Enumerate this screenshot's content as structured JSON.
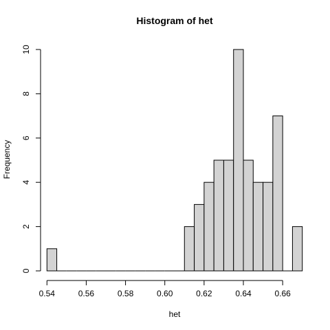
{
  "chart_data": {
    "type": "bar",
    "title": "Histogram of het",
    "xlabel": "het",
    "ylabel": "Frequency",
    "bins": [
      {
        "start": 0.54,
        "end": 0.545,
        "count": 1
      },
      {
        "start": 0.545,
        "end": 0.55,
        "count": 0
      },
      {
        "start": 0.55,
        "end": 0.555,
        "count": 0
      },
      {
        "start": 0.555,
        "end": 0.56,
        "count": 0
      },
      {
        "start": 0.56,
        "end": 0.565,
        "count": 0
      },
      {
        "start": 0.565,
        "end": 0.57,
        "count": 0
      },
      {
        "start": 0.57,
        "end": 0.575,
        "count": 0
      },
      {
        "start": 0.575,
        "end": 0.58,
        "count": 0
      },
      {
        "start": 0.58,
        "end": 0.585,
        "count": 0
      },
      {
        "start": 0.585,
        "end": 0.59,
        "count": 0
      },
      {
        "start": 0.59,
        "end": 0.595,
        "count": 0
      },
      {
        "start": 0.595,
        "end": 0.6,
        "count": 0
      },
      {
        "start": 0.6,
        "end": 0.605,
        "count": 0
      },
      {
        "start": 0.605,
        "end": 0.61,
        "count": 0
      },
      {
        "start": 0.61,
        "end": 0.615,
        "count": 2
      },
      {
        "start": 0.615,
        "end": 0.62,
        "count": 3
      },
      {
        "start": 0.62,
        "end": 0.625,
        "count": 4
      },
      {
        "start": 0.625,
        "end": 0.63,
        "count": 5
      },
      {
        "start": 0.63,
        "end": 0.635,
        "count": 5
      },
      {
        "start": 0.635,
        "end": 0.64,
        "count": 10
      },
      {
        "start": 0.64,
        "end": 0.645,
        "count": 5
      },
      {
        "start": 0.645,
        "end": 0.65,
        "count": 4
      },
      {
        "start": 0.65,
        "end": 0.655,
        "count": 4
      },
      {
        "start": 0.655,
        "end": 0.66,
        "count": 7
      },
      {
        "start": 0.66,
        "end": 0.665,
        "count": 0
      },
      {
        "start": 0.665,
        "end": 0.67,
        "count": 2
      }
    ],
    "x_ticks": [
      {
        "value": 0.54,
        "label": "0.54"
      },
      {
        "value": 0.56,
        "label": "0.56"
      },
      {
        "value": 0.58,
        "label": "0.58"
      },
      {
        "value": 0.6,
        "label": "0.60"
      },
      {
        "value": 0.62,
        "label": "0.62"
      },
      {
        "value": 0.64,
        "label": "0.64"
      },
      {
        "value": 0.66,
        "label": "0.66"
      }
    ],
    "y_ticks": [
      {
        "value": 0,
        "label": "0"
      },
      {
        "value": 2,
        "label": "2"
      },
      {
        "value": 4,
        "label": "4"
      },
      {
        "value": 6,
        "label": "6"
      },
      {
        "value": 8,
        "label": "8"
      },
      {
        "value": 10,
        "label": "10"
      }
    ],
    "xlim": [
      0.54,
      0.67
    ],
    "ylim": [
      0,
      10
    ],
    "grid": false,
    "legend": "none",
    "bar_fill": "#d3d3d3",
    "bar_stroke": "#000000"
  }
}
